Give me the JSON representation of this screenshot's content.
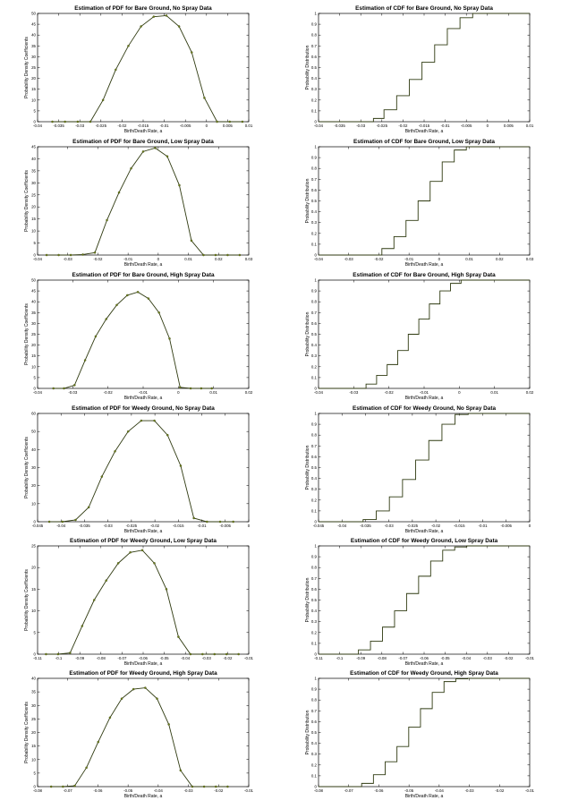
{
  "chart_data": [
    {
      "type": "line",
      "title": "Estimation of PDF for Bare Ground, No Spray Data",
      "xlabel": "Birth/Death Rate, a",
      "ylabel": "Probability Density Coefficients",
      "xlim": [
        -0.04,
        0.01
      ],
      "ylim": [
        0,
        50
      ],
      "xticks": [
        -0.04,
        -0.035,
        -0.03,
        -0.025,
        -0.02,
        -0.015,
        -0.01,
        -0.005,
        0,
        0.005,
        0.01
      ],
      "xtick_labels": [
        "-0.04",
        "-0.035",
        "-0.03",
        "-0.025",
        "-0.02",
        "-0.015",
        "-0.01",
        "-0.005",
        "0",
        "0.005",
        "0.01"
      ],
      "yticks": [
        0,
        5,
        10,
        15,
        20,
        25,
        30,
        35,
        40,
        45,
        50
      ],
      "ytick_labels": [
        "0",
        "5",
        "10",
        "15",
        "20",
        "25",
        "30",
        "35",
        "40",
        "45",
        "50"
      ],
      "x": [
        -0.0365,
        -0.0335,
        -0.0305,
        -0.0275,
        -0.0245,
        -0.0215,
        -0.0185,
        -0.0155,
        -0.0125,
        -0.0095,
        -0.0065,
        -0.0035,
        -0.0005,
        0.0025,
        0.0055,
        0.0085
      ],
      "y": [
        0,
        0,
        0,
        0,
        10,
        24,
        35,
        44,
        48.5,
        49,
        44,
        32,
        11,
        0,
        0,
        0
      ]
    },
    {
      "type": "line",
      "title": "Estimation of CDF for Bare Ground, No Spray Data",
      "xlabel": "Birth/Death Rate, a",
      "ylabel": "Probability Distribution",
      "xlim": [
        -0.04,
        0.01
      ],
      "ylim": [
        0,
        1
      ],
      "xticks": [
        -0.04,
        -0.035,
        -0.03,
        -0.025,
        -0.02,
        -0.015,
        -0.01,
        -0.005,
        0,
        0.005,
        0.01
      ],
      "xtick_labels": [
        "-0.04",
        "-0.035",
        "-0.03",
        "-0.025",
        "-0.02",
        "-0.015",
        "-0.01",
        "-0.005",
        "0",
        "0.005",
        "0.01"
      ],
      "yticks": [
        0,
        0.1,
        0.2,
        0.3,
        0.4,
        0.5,
        0.6,
        0.7,
        0.8,
        0.9,
        1
      ],
      "ytick_labels": [
        "0",
        "0.1",
        "0.2",
        "0.3",
        "0.4",
        "0.5",
        "0.6",
        "0.7",
        "0.8",
        "0.9",
        "1"
      ],
      "x": [
        -0.04,
        -0.027,
        -0.027,
        -0.0245,
        -0.0245,
        -0.0215,
        -0.0215,
        -0.0185,
        -0.0185,
        -0.0155,
        -0.0155,
        -0.0125,
        -0.0125,
        -0.0095,
        -0.0095,
        -0.0065,
        -0.0065,
        -0.0035,
        -0.0035,
        0.01
      ],
      "y": [
        0,
        0,
        0.03,
        0.03,
        0.11,
        0.11,
        0.24,
        0.24,
        0.39,
        0.39,
        0.55,
        0.55,
        0.71,
        0.71,
        0.86,
        0.86,
        0.96,
        0.96,
        1,
        1
      ]
    },
    {
      "type": "line",
      "title": "Estimation of PDF for Bare Ground, Low Spray Data",
      "xlabel": "Birth/Death Rate, a",
      "ylabel": "Probability Density Coefficients",
      "xlim": [
        -0.04,
        0.03
      ],
      "ylim": [
        0,
        45
      ],
      "xticks": [
        -0.04,
        -0.03,
        -0.02,
        -0.01,
        0,
        0.01,
        0.02,
        0.03
      ],
      "xtick_labels": [
        "-0.04",
        "-0.03",
        "-0.02",
        "-0.01",
        "0",
        "0.01",
        "0.02",
        "0.03"
      ],
      "yticks": [
        0,
        5,
        10,
        15,
        20,
        25,
        30,
        35,
        40,
        45
      ],
      "ytick_labels": [
        "0",
        "5",
        "10",
        "15",
        "20",
        "25",
        "30",
        "35",
        "40",
        "45"
      ],
      "x": [
        -0.037,
        -0.033,
        -0.029,
        -0.025,
        -0.021,
        -0.017,
        -0.013,
        -0.009,
        -0.005,
        -0.001,
        0.003,
        0.007,
        0.011,
        0.015,
        0.019,
        0.023,
        0.027
      ],
      "y": [
        0,
        0,
        0,
        0.2,
        1,
        14.5,
        26,
        36,
        43,
        44.5,
        41,
        29,
        6,
        0,
        0,
        0,
        0
      ]
    },
    {
      "type": "line",
      "title": "Estimation of CDF for Bare Ground, Low Spray Data",
      "xlabel": "Birth/Death Rate, a",
      "ylabel": "Probability Distribution",
      "xlim": [
        -0.04,
        0.03
      ],
      "ylim": [
        0,
        1
      ],
      "xticks": [
        -0.04,
        -0.03,
        -0.02,
        -0.01,
        0,
        0.01,
        0.02,
        0.03
      ],
      "xtick_labels": [
        "-0.04",
        "-0.03",
        "-0.02",
        "-0.01",
        "0",
        "0.01",
        "0.02",
        "0.03"
      ],
      "yticks": [
        0,
        0.1,
        0.2,
        0.3,
        0.4,
        0.5,
        0.6,
        0.7,
        0.8,
        0.9,
        1
      ],
      "ytick_labels": [
        "0",
        "0.1",
        "0.2",
        "0.3",
        "0.4",
        "0.5",
        "0.6",
        "0.7",
        "0.8",
        "0.9",
        "1"
      ],
      "x": [
        -0.04,
        -0.019,
        -0.019,
        -0.015,
        -0.015,
        -0.011,
        -0.011,
        -0.007,
        -0.007,
        -0.003,
        -0.003,
        0.001,
        0.001,
        0.005,
        0.005,
        0.009,
        0.009,
        0.03
      ],
      "y": [
        0,
        0,
        0.06,
        0.06,
        0.17,
        0.17,
        0.32,
        0.32,
        0.5,
        0.5,
        0.68,
        0.68,
        0.86,
        0.86,
        0.97,
        0.97,
        1,
        1
      ]
    },
    {
      "type": "line",
      "title": "Estimation of PDF for Bare Ground, High Spray Data",
      "xlabel": "Birth/Death Rate, a",
      "ylabel": "Probability Density Coefficients",
      "xlim": [
        -0.04,
        0.02
      ],
      "ylim": [
        0,
        50
      ],
      "xticks": [
        -0.04,
        -0.03,
        -0.02,
        -0.01,
        0,
        0.01,
        0.02
      ],
      "xtick_labels": [
        "-0.04",
        "-0.03",
        "-0.02",
        "-0.01",
        "0",
        "0.01",
        "0.02"
      ],
      "yticks": [
        0,
        5,
        10,
        15,
        20,
        25,
        30,
        35,
        40,
        45,
        50
      ],
      "ytick_labels": [
        "0",
        "5",
        "10",
        "15",
        "20",
        "25",
        "30",
        "35",
        "40",
        "45",
        "50"
      ],
      "x": [
        -0.0355,
        -0.0325,
        -0.0295,
        -0.0265,
        -0.0235,
        -0.0205,
        -0.0175,
        -0.0145,
        -0.0115,
        -0.0085,
        -0.0055,
        -0.0025,
        0.0005,
        0.0035,
        0.0065,
        0.0095
      ],
      "y": [
        0,
        0,
        1.5,
        13,
        24,
        32,
        38.5,
        43,
        44.5,
        41.5,
        35,
        23,
        0.5,
        0,
        0,
        0
      ]
    },
    {
      "type": "line",
      "title": "Estimation of CDF for Bare Ground, High Spray Data",
      "xlabel": "Birth/Death Rate, a",
      "ylabel": "Probability Distribution",
      "xlim": [
        -0.04,
        0.02
      ],
      "ylim": [
        0,
        1
      ],
      "xticks": [
        -0.04,
        -0.03,
        -0.02,
        -0.01,
        0,
        0.01,
        0.02
      ],
      "xtick_labels": [
        "-0.04",
        "-0.03",
        "-0.02",
        "-0.01",
        "0",
        "0.01",
        "0.02"
      ],
      "yticks": [
        0,
        0.1,
        0.2,
        0.3,
        0.4,
        0.5,
        0.6,
        0.7,
        0.8,
        0.9,
        1
      ],
      "ytick_labels": [
        "0",
        "0.1",
        "0.2",
        "0.3",
        "0.4",
        "0.5",
        "0.6",
        "0.7",
        "0.8",
        "0.9",
        "1"
      ],
      "x": [
        -0.04,
        -0.0265,
        -0.0265,
        -0.0235,
        -0.0235,
        -0.0205,
        -0.0205,
        -0.0175,
        -0.0175,
        -0.0145,
        -0.0145,
        -0.0115,
        -0.0115,
        -0.0085,
        -0.0085,
        -0.0055,
        -0.0055,
        -0.0025,
        -0.0025,
        0.0005,
        0.0005,
        0.02
      ],
      "y": [
        0,
        0,
        0.04,
        0.04,
        0.12,
        0.12,
        0.22,
        0.22,
        0.35,
        0.35,
        0.5,
        0.5,
        0.64,
        0.64,
        0.78,
        0.78,
        0.9,
        0.9,
        0.97,
        0.97,
        1,
        1
      ]
    },
    {
      "type": "line",
      "title": "Estimation of PDF for Weedy Ground, No Spray Data",
      "xlabel": "Birth/Death Rate, a",
      "ylabel": "Probability Density Coefficients",
      "xlim": [
        -0.045,
        0
      ],
      "ylim": [
        0,
        60
      ],
      "xticks": [
        -0.045,
        -0.04,
        -0.035,
        -0.03,
        -0.025,
        -0.02,
        -0.015,
        -0.01,
        -0.005,
        0
      ],
      "xtick_labels": [
        "-0.045",
        "-0.04",
        "-0.035",
        "-0.03",
        "-0.025",
        "-0.02",
        "-0.015",
        "-0.01",
        "-0.005",
        "0"
      ],
      "yticks": [
        0,
        10,
        20,
        30,
        40,
        50,
        60
      ],
      "ytick_labels": [
        "0",
        "10",
        "20",
        "30",
        "40",
        "50",
        "60"
      ],
      "x": [
        -0.0425,
        -0.0397,
        -0.0369,
        -0.0341,
        -0.0313,
        -0.0285,
        -0.0257,
        -0.0229,
        -0.0201,
        -0.0173,
        -0.0145,
        -0.0117,
        -0.0089,
        -0.0061,
        -0.0033
      ],
      "y": [
        0,
        0,
        1,
        8,
        25,
        39,
        50,
        56,
        56,
        48,
        31,
        2,
        0,
        0,
        0
      ]
    },
    {
      "type": "line",
      "title": "Estimation of CDF for Weedy Ground, No Spray Data",
      "xlabel": "Birth/Death Rate, a",
      "ylabel": "Probability Distribution",
      "xlim": [
        -0.045,
        0
      ],
      "ylim": [
        0,
        1
      ],
      "xticks": [
        -0.045,
        -0.04,
        -0.035,
        -0.03,
        -0.025,
        -0.02,
        -0.015,
        -0.01,
        -0.005,
        0
      ],
      "xtick_labels": [
        "-0.045",
        "-0.04",
        "-0.035",
        "-0.03",
        "-0.025",
        "-0.02",
        "-0.015",
        "-0.01",
        "-0.005",
        "0"
      ],
      "yticks": [
        0,
        0.1,
        0.2,
        0.3,
        0.4,
        0.5,
        0.6,
        0.7,
        0.8,
        0.9,
        1
      ],
      "ytick_labels": [
        "0",
        "0.1",
        "0.2",
        "0.3",
        "0.4",
        "0.5",
        "0.6",
        "0.7",
        "0.8",
        "0.9",
        "1"
      ],
      "x": [
        -0.045,
        -0.0355,
        -0.0355,
        -0.0327,
        -0.0327,
        -0.0299,
        -0.0299,
        -0.0271,
        -0.0271,
        -0.0243,
        -0.0243,
        -0.0215,
        -0.0215,
        -0.0187,
        -0.0187,
        -0.0159,
        -0.0159,
        -0.0131,
        -0.0131,
        0
      ],
      "y": [
        0,
        0,
        0.02,
        0.02,
        0.1,
        0.1,
        0.23,
        0.23,
        0.39,
        0.39,
        0.57,
        0.57,
        0.75,
        0.75,
        0.9,
        0.9,
        0.99,
        0.99,
        1,
        1
      ]
    },
    {
      "type": "line",
      "title": "Estimation of PDF for Weedy Ground, Low Spray Data",
      "xlabel": "Birth/Death Rate, a",
      "ylabel": "Probability Density Coefficients",
      "xlim": [
        -0.11,
        -0.01
      ],
      "ylim": [
        0,
        25
      ],
      "xticks": [
        -0.11,
        -0.1,
        -0.09,
        -0.08,
        -0.07,
        -0.06,
        -0.05,
        -0.04,
        -0.03,
        -0.02,
        -0.01
      ],
      "xtick_labels": [
        "-0.11",
        "-0.1",
        "-0.09",
        "-0.08",
        "-0.07",
        "-0.06",
        "-0.05",
        "-0.04",
        "-0.03",
        "-0.02",
        "-0.01"
      ],
      "yticks": [
        0,
        5,
        10,
        15,
        20,
        25
      ],
      "ytick_labels": [
        "0",
        "5",
        "10",
        "15",
        "20",
        "25"
      ],
      "x": [
        -0.106,
        -0.1003,
        -0.0946,
        -0.0889,
        -0.0832,
        -0.0775,
        -0.0718,
        -0.0661,
        -0.0604,
        -0.0547,
        -0.049,
        -0.0433,
        -0.0376,
        -0.0319,
        -0.0262,
        -0.0205,
        -0.0148
      ],
      "y": [
        0,
        0,
        0.3,
        6.5,
        12.5,
        17,
        21,
        23.5,
        24,
        21,
        15,
        4,
        0,
        0,
        0,
        0,
        0
      ]
    },
    {
      "type": "line",
      "title": "Estimation of CDF for Weedy Ground, Low Spray Data",
      "xlabel": "Birth/Death Rate, a",
      "ylabel": "Probability Distribution",
      "xlim": [
        -0.11,
        -0.01
      ],
      "ylim": [
        0,
        1
      ],
      "xticks": [
        -0.11,
        -0.1,
        -0.09,
        -0.08,
        -0.07,
        -0.06,
        -0.05,
        -0.04,
        -0.03,
        -0.02,
        -0.01
      ],
      "xtick_labels": [
        "-0.11",
        "-0.1",
        "-0.09",
        "-0.08",
        "-0.07",
        "-0.06",
        "-0.05",
        "-0.04",
        "-0.03",
        "-0.02",
        "-0.01"
      ],
      "yticks": [
        0,
        0.1,
        0.2,
        0.3,
        0.4,
        0.5,
        0.6,
        0.7,
        0.8,
        0.9,
        1
      ],
      "ytick_labels": [
        "0",
        "0.1",
        "0.2",
        "0.3",
        "0.4",
        "0.5",
        "0.6",
        "0.7",
        "0.8",
        "0.9",
        "1"
      ],
      "x": [
        -0.11,
        -0.0911,
        -0.0911,
        -0.0854,
        -0.0854,
        -0.0797,
        -0.0797,
        -0.074,
        -0.074,
        -0.0683,
        -0.0683,
        -0.0626,
        -0.0626,
        -0.0569,
        -0.0569,
        -0.0512,
        -0.0512,
        -0.0455,
        -0.0455,
        -0.0398,
        -0.0398,
        -0.01
      ],
      "y": [
        0,
        0,
        0.04,
        0.04,
        0.12,
        0.12,
        0.25,
        0.25,
        0.4,
        0.4,
        0.56,
        0.56,
        0.72,
        0.72,
        0.86,
        0.86,
        0.96,
        0.96,
        0.99,
        0.99,
        1,
        1
      ]
    },
    {
      "type": "line",
      "title": "Estimation of PDF for Weedy Ground, High Spray Data",
      "xlabel": "Birth/Death Rate, a",
      "ylabel": "Probability Density Coefficients",
      "xlim": [
        -0.08,
        -0.01
      ],
      "ylim": [
        0,
        40
      ],
      "xticks": [
        -0.08,
        -0.07,
        -0.06,
        -0.05,
        -0.04,
        -0.03,
        -0.02,
        -0.01
      ],
      "xtick_labels": [
        "-0.08",
        "-0.07",
        "-0.06",
        "-0.05",
        "-0.04",
        "-0.03",
        "-0.02",
        "-0.01"
      ],
      "yticks": [
        0,
        5,
        10,
        15,
        20,
        25,
        30,
        35,
        40
      ],
      "ytick_labels": [
        "0",
        "5",
        "10",
        "15",
        "20",
        "25",
        "30",
        "35",
        "40"
      ],
      "x": [
        -0.0755,
        -0.0716,
        -0.0677,
        -0.0638,
        -0.0599,
        -0.056,
        -0.0521,
        -0.0482,
        -0.0443,
        -0.0404,
        -0.0365,
        -0.0326,
        -0.0287,
        -0.0248,
        -0.0209,
        -0.017
      ],
      "y": [
        0,
        0,
        0.3,
        7,
        16.5,
        25.5,
        32.5,
        36,
        36.5,
        32.5,
        23,
        6,
        0,
        0,
        0,
        0
      ]
    },
    {
      "type": "line",
      "title": "Estimation of CDF for Weedy Ground, High Spray Data",
      "xlabel": "Birth/Death Rate, a",
      "ylabel": "Probability Distribution",
      "xlim": [
        -0.08,
        -0.01
      ],
      "ylim": [
        0,
        1
      ],
      "xticks": [
        -0.08,
        -0.07,
        -0.06,
        -0.05,
        -0.04,
        -0.03,
        -0.02,
        -0.01
      ],
      "xtick_labels": [
        "-0.08",
        "-0.07",
        "-0.06",
        "-0.05",
        "-0.04",
        "-0.03",
        "-0.02",
        "-0.01"
      ],
      "yticks": [
        0,
        0.1,
        0.2,
        0.3,
        0.4,
        0.5,
        0.6,
        0.7,
        0.8,
        0.9,
        1
      ],
      "ytick_labels": [
        "0",
        "0.1",
        "0.2",
        "0.3",
        "0.4",
        "0.5",
        "0.6",
        "0.7",
        "0.8",
        "0.9",
        "1"
      ],
      "x": [
        -0.08,
        -0.0657,
        -0.0657,
        -0.0618,
        -0.0618,
        -0.0579,
        -0.0579,
        -0.054,
        -0.054,
        -0.0501,
        -0.0501,
        -0.0462,
        -0.0462,
        -0.0423,
        -0.0423,
        -0.0384,
        -0.0384,
        -0.0345,
        -0.0345,
        -0.0306,
        -0.0306,
        -0.01
      ],
      "y": [
        0,
        0,
        0.03,
        0.03,
        0.11,
        0.11,
        0.23,
        0.23,
        0.37,
        0.37,
        0.55,
        0.55,
        0.72,
        0.72,
        0.87,
        0.87,
        0.97,
        0.97,
        0.995,
        0.995,
        1,
        1
      ]
    }
  ],
  "style": {
    "line_color": "#2f3a10",
    "marker_color": "#6f7f18",
    "axis_color": "#000000",
    "background": "#ffffff"
  }
}
